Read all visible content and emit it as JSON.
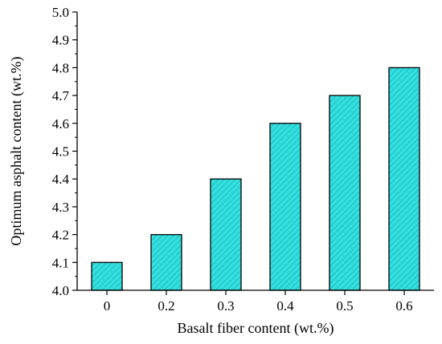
{
  "chart_data": {
    "type": "bar",
    "title": "",
    "xlabel": "Basalt fiber content (wt.%)",
    "ylabel": "Optimum asphalt content (wt.%)",
    "categories": [
      "0",
      "0.2",
      "0.3",
      "0.4",
      "0.5",
      "0.6"
    ],
    "values": [
      4.1,
      4.2,
      4.4,
      4.6,
      4.7,
      4.8
    ],
    "ylim": [
      4.0,
      5.0
    ],
    "yticks": [
      "4.0",
      "4.1",
      "4.2",
      "4.3",
      "4.4",
      "4.5",
      "4.6",
      "4.7",
      "4.8",
      "4.9",
      "5.0"
    ],
    "grid": false,
    "legend": "none",
    "bar_fill": "#33e0e0",
    "bar_hatch": "#1aa8a8",
    "bar_edge": "#000000"
  }
}
